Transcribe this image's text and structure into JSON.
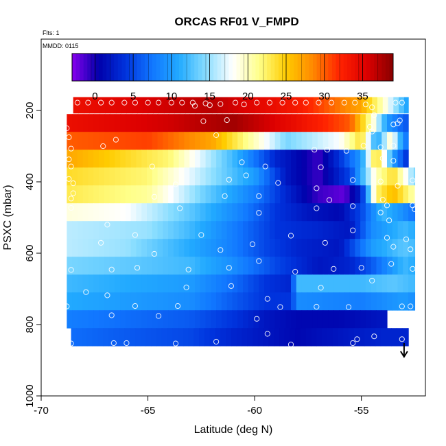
{
  "chart_data": {
    "type": "heatmap",
    "title": "ORCAS RF01 V_FMPD",
    "flts_note": "Flts: 1",
    "mmdd_note": "MMDD: 0115",
    "xlabel": "Latitude (deg N)",
    "ylabel": "PSXC (mbar)",
    "xlim": [
      -70,
      -52
    ],
    "ylim": [
      1000,
      0
    ],
    "xticks": [
      -70,
      -65,
      -60,
      -55
    ],
    "yticks": [
      200,
      400,
      600,
      800,
      1000
    ],
    "colorbar": {
      "range": [
        -3,
        39
      ],
      "ticks": [
        0,
        5,
        10,
        15,
        20,
        25,
        30,
        35
      ],
      "colors": [
        "#8800ee",
        "#0000aa",
        "#0033dd",
        "#1177ff",
        "#22aaff",
        "#88ddff",
        "#ffffff",
        "#ffff88",
        "#ffcc00",
        "#ff8800",
        "#ff2200",
        "#dd0000",
        "#880000"
      ]
    },
    "descent_arrow_latitude": -53,
    "layers": [
      {
        "p": 185,
        "dp": 45,
        "x0": -68.5,
        "x1": -52.8,
        "stops": [
          [
            -68.5,
            34
          ],
          [
            -62,
            37
          ],
          [
            -58,
            33
          ],
          [
            -55,
            27
          ],
          [
            -54,
            20
          ],
          [
            -53.3,
            14
          ],
          [
            -52.8,
            10
          ]
        ]
      },
      {
        "p": 235,
        "dp": 50,
        "x0": -68.8,
        "x1": -52.8,
        "stops": [
          [
            -68.8,
            34
          ],
          [
            -64,
            36
          ],
          [
            -61,
            38
          ],
          [
            -58,
            34
          ],
          [
            -55.5,
            30
          ],
          [
            -54.5,
            20
          ],
          [
            -53.8,
            10
          ],
          [
            -53,
            6
          ]
        ]
      },
      {
        "p": 285,
        "dp": 50,
        "x0": -68.8,
        "x1": -52.8,
        "stops": [
          [
            -68.8,
            30
          ],
          [
            -65,
            31
          ],
          [
            -62,
            27
          ],
          [
            -60,
            20
          ],
          [
            -58.5,
            14
          ],
          [
            -56,
            18
          ],
          [
            -55,
            24
          ],
          [
            -54.3,
            10
          ],
          [
            -53.6,
            20
          ],
          [
            -53,
            8
          ]
        ]
      },
      {
        "p": 335,
        "dp": 50,
        "x0": -68.8,
        "x1": -52.8,
        "stops": [
          [
            -68.8,
            27
          ],
          [
            -64,
            22
          ],
          [
            -61,
            12
          ],
          [
            -59,
            3
          ],
          [
            -57,
            -1
          ],
          [
            -56,
            4
          ],
          [
            -55,
            10
          ],
          [
            -54.3,
            25
          ],
          [
            -53.5,
            10
          ],
          [
            -52.8,
            3
          ]
        ]
      },
      {
        "p": 385,
        "dp": 50,
        "x0": -68.8,
        "x1": -52.5,
        "stops": [
          [
            -68.8,
            24
          ],
          [
            -65,
            22
          ],
          [
            -62.5,
            16
          ],
          [
            -60,
            10
          ],
          [
            -58.5,
            2
          ],
          [
            -57,
            -1
          ],
          [
            -55.5,
            5
          ],
          [
            -54.3,
            20
          ],
          [
            -53.5,
            24
          ],
          [
            -52.5,
            14
          ]
        ]
      },
      {
        "p": 435,
        "dp": 50,
        "x0": -68.8,
        "x1": -52.5,
        "stops": [
          [
            -68.8,
            23
          ],
          [
            -65,
            21
          ],
          [
            -62.5,
            14
          ],
          [
            -60,
            8
          ],
          [
            -58.5,
            3
          ],
          [
            -57,
            -1
          ],
          [
            -55.8,
            -2
          ],
          [
            -55,
            3
          ],
          [
            -54.3,
            22
          ],
          [
            -53.5,
            26
          ],
          [
            -52.5,
            20
          ]
        ]
      },
      {
        "p": 485,
        "dp": 50,
        "x0": -68.8,
        "x1": -52.5,
        "stops": [
          [
            -68.8,
            19
          ],
          [
            -66,
            18
          ],
          [
            -63,
            13
          ],
          [
            -60.5,
            8
          ],
          [
            -59,
            4
          ],
          [
            -57.5,
            2
          ],
          [
            -56,
            1
          ],
          [
            -55,
            5
          ],
          [
            -54,
            12
          ],
          [
            -53,
            9
          ],
          [
            -52.5,
            7
          ]
        ]
      },
      {
        "p": 535,
        "dp": 50,
        "x0": -68.8,
        "x1": -52.5,
        "stops": [
          [
            -68.8,
            16
          ],
          [
            -65,
            15
          ],
          [
            -63,
            12
          ],
          [
            -60.5,
            7
          ],
          [
            -59,
            4
          ],
          [
            -57,
            3
          ],
          [
            -55.5,
            2
          ],
          [
            -54.5,
            9
          ],
          [
            -53,
            12
          ],
          [
            -52.5,
            11
          ]
        ]
      },
      {
        "p": 585,
        "dp": 50,
        "x0": -68.8,
        "x1": -52.5,
        "stops": [
          [
            -68.8,
            16
          ],
          [
            -66,
            15
          ],
          [
            -63,
            11
          ],
          [
            -61,
            8
          ],
          [
            -59.5,
            5
          ],
          [
            -58,
            3
          ],
          [
            -56,
            2
          ],
          [
            -54.5,
            10
          ],
          [
            -53,
            13
          ],
          [
            -52.5,
            12
          ]
        ]
      },
      {
        "p": 635,
        "dp": 50,
        "x0": -68.8,
        "x1": -52.5,
        "stops": [
          [
            -68.8,
            14
          ],
          [
            -65.5,
            13
          ],
          [
            -63,
            12
          ],
          [
            -61,
            9
          ],
          [
            -59,
            5
          ],
          [
            -57,
            2
          ],
          [
            -55.5,
            3
          ],
          [
            -54.5,
            6
          ],
          [
            -53,
            12
          ],
          [
            -52.5,
            11
          ]
        ]
      },
      {
        "p": 685,
        "dp": 50,
        "x0": -68.8,
        "x1": -52.5,
        "stops": [
          [
            -68.8,
            12
          ],
          [
            -66,
            11
          ],
          [
            -63,
            10
          ],
          [
            -61,
            7
          ],
          [
            -59.5,
            4
          ],
          [
            -58.3,
            3
          ],
          [
            -58,
            12
          ],
          [
            -55,
            12
          ],
          [
            -53.5,
            13
          ],
          [
            -52.5,
            12
          ]
        ]
      },
      {
        "p": 735,
        "dp": 50,
        "x0": -68.8,
        "x1": -52.5,
        "stops": [
          [
            -68.8,
            11
          ],
          [
            -66,
            10
          ],
          [
            -63,
            9
          ],
          [
            -61,
            6
          ],
          [
            -59.5,
            4
          ],
          [
            -58.3,
            4
          ],
          [
            -58,
            9
          ],
          [
            -55,
            8
          ],
          [
            -53,
            10
          ],
          [
            -52.5,
            9
          ]
        ]
      },
      {
        "p": 785,
        "dp": 50,
        "x0": -68.8,
        "x1": -53.8,
        "stops": [
          [
            -68.8,
            8
          ],
          [
            -66,
            7
          ],
          [
            -63,
            6
          ],
          [
            -61,
            4
          ],
          [
            -59.5,
            2
          ],
          [
            -58,
            1
          ],
          [
            -56,
            1
          ],
          [
            -54,
            2
          ],
          [
            -53.8,
            2
          ]
        ]
      },
      {
        "p": 835,
        "dp": 50,
        "x0": -68.6,
        "x1": -52.8,
        "stops": [
          [
            -68.6,
            7
          ],
          [
            -66,
            6
          ],
          [
            -63,
            5
          ],
          [
            -61,
            3
          ],
          [
            -59.5,
            2
          ],
          [
            -58,
            1
          ],
          [
            -56,
            2
          ],
          [
            -54,
            3
          ],
          [
            -52.8,
            3
          ]
        ]
      }
    ],
    "obs_points": [
      [
        -68.3,
        178
      ],
      [
        -67.8,
        178
      ],
      [
        -67.2,
        178
      ],
      [
        -66.7,
        178
      ],
      [
        -66.1,
        178
      ],
      [
        -65.6,
        178
      ],
      [
        -65.0,
        178
      ],
      [
        -64.5,
        178
      ],
      [
        -63.9,
        178
      ],
      [
        -63.4,
        178
      ],
      [
        -62.9,
        178
      ],
      [
        -62.3,
        180
      ],
      [
        -61.6,
        182
      ],
      [
        -60.9,
        178
      ],
      [
        -60.5,
        183
      ],
      [
        -59.9,
        178
      ],
      [
        -59.3,
        178
      ],
      [
        -58.7,
        178
      ],
      [
        -58.1,
        178
      ],
      [
        -57.6,
        178
      ],
      [
        -57.0,
        178
      ],
      [
        -56.4,
        178
      ],
      [
        -55.8,
        178
      ],
      [
        -55.3,
        178
      ],
      [
        -54.8,
        183
      ],
      [
        -54.5,
        191
      ],
      [
        -53.4,
        178
      ],
      [
        -53.1,
        178
      ],
      [
        -62.8,
        187
      ],
      [
        -62.1,
        185
      ],
      [
        -62.4,
        230
      ],
      [
        -61.3,
        227
      ],
      [
        -54.4,
        213
      ],
      [
        -54.6,
        246
      ],
      [
        -53.3,
        236
      ],
      [
        -53.2,
        228
      ],
      [
        -54.5,
        259
      ],
      [
        -53.5,
        239
      ],
      [
        -68.8,
        250
      ],
      [
        -68.7,
        275
      ],
      [
        -61.8,
        269
      ],
      [
        -68.6,
        307
      ],
      [
        -67.1,
        300
      ],
      [
        -66.5,
        282
      ],
      [
        -57.2,
        310
      ],
      [
        -56.6,
        310
      ],
      [
        -55.7,
        313
      ],
      [
        -54.9,
        299
      ],
      [
        -54.1,
        303
      ],
      [
        -53.5,
        299
      ],
      [
        -68.7,
        337
      ],
      [
        -68.6,
        357
      ],
      [
        -64.8,
        357
      ],
      [
        -60.6,
        345
      ],
      [
        -59.5,
        357
      ],
      [
        -56.9,
        359
      ],
      [
        -54.0,
        334
      ],
      [
        -53.5,
        341
      ],
      [
        -68.7,
        392
      ],
      [
        -68.5,
        404
      ],
      [
        -63.7,
        407
      ],
      [
        -61.2,
        394
      ],
      [
        -60.4,
        382
      ],
      [
        -58.9,
        403
      ],
      [
        -57.1,
        418
      ],
      [
        -55.4,
        395
      ],
      [
        -54.1,
        399
      ],
      [
        -53.3,
        411
      ],
      [
        -52.6,
        396
      ],
      [
        -68.5,
        432
      ],
      [
        -68.6,
        447
      ],
      [
        -64.7,
        442
      ],
      [
        -61.4,
        440
      ],
      [
        -59.8,
        440
      ],
      [
        -56.5,
        451
      ],
      [
        -55.4,
        468
      ],
      [
        -54.0,
        450
      ],
      [
        -53.8,
        466
      ],
      [
        -52.6,
        466
      ],
      [
        -68.6,
        473
      ],
      [
        -63.5,
        474
      ],
      [
        -59.8,
        487
      ],
      [
        -57.1,
        474
      ],
      [
        -54.1,
        486
      ],
      [
        -53.7,
        508
      ],
      [
        -52.5,
        477
      ],
      [
        -66.9,
        520
      ],
      [
        -65.6,
        549
      ],
      [
        -62.5,
        549
      ],
      [
        -58.3,
        551
      ],
      [
        -55.4,
        536
      ],
      [
        -53.8,
        557
      ],
      [
        -52.9,
        561
      ],
      [
        -67.2,
        571
      ],
      [
        -64.7,
        602
      ],
      [
        -61.6,
        591
      ],
      [
        -60.1,
        575
      ],
      [
        -56.7,
        571
      ],
      [
        -53.5,
        582
      ],
      [
        -52.7,
        589
      ],
      [
        -68.6,
        647
      ],
      [
        -66.7,
        646
      ],
      [
        -65.5,
        641
      ],
      [
        -63.1,
        646
      ],
      [
        -61.2,
        641
      ],
      [
        -59.8,
        622
      ],
      [
        -58.1,
        652
      ],
      [
        -56.3,
        644
      ],
      [
        -55.0,
        641
      ],
      [
        -53.6,
        630
      ],
      [
        -52.6,
        644
      ],
      [
        -63.2,
        696
      ],
      [
        -61.1,
        692
      ],
      [
        -56.9,
        697
      ],
      [
        -54.5,
        677
      ],
      [
        -67.9,
        709
      ],
      [
        -68.8,
        749
      ],
      [
        -66.9,
        718
      ],
      [
        -65.6,
        748
      ],
      [
        -63.6,
        748
      ],
      [
        -59.4,
        728
      ],
      [
        -58.8,
        751
      ],
      [
        -57.1,
        750
      ],
      [
        -55.6,
        751
      ],
      [
        -53.1,
        749
      ],
      [
        -52.7,
        749
      ],
      [
        -66.7,
        774
      ],
      [
        -64.5,
        776
      ],
      [
        -59.9,
        784
      ],
      [
        -59.4,
        826
      ],
      [
        -55.2,
        841
      ],
      [
        -54.4,
        833
      ],
      [
        -53.1,
        841
      ],
      [
        -68.6,
        853
      ],
      [
        -66.6,
        852
      ],
      [
        -66.0,
        852
      ],
      [
        -63.7,
        853
      ],
      [
        -61.8,
        848
      ],
      [
        -58.3,
        856
      ],
      [
        -55.4,
        852
      ]
    ]
  }
}
